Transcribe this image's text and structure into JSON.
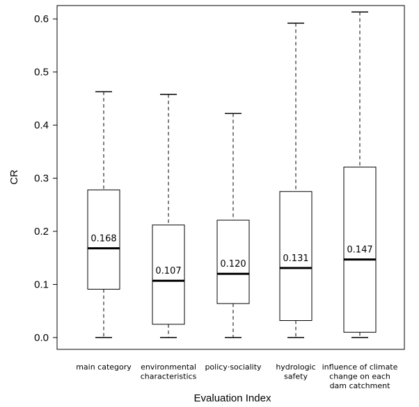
{
  "chart_data": {
    "type": "box",
    "title": "",
    "xlabel": "Evaluation Index",
    "ylabel": "CR",
    "ylim": [
      -0.03,
      0.63
    ],
    "yticks": [
      0.0,
      0.1,
      0.2,
      0.3,
      0.4,
      0.5,
      0.6
    ],
    "ytick_labels": [
      "0.0",
      "0.1",
      "0.2",
      "0.3",
      "0.4",
      "0.5",
      "0.6"
    ],
    "grid": false,
    "boxes": [
      {
        "label_lines": [
          "main category"
        ],
        "min": 0.0,
        "q1": 0.091,
        "median": 0.168,
        "q3": 0.278,
        "max": 0.463,
        "median_label": "0.168"
      },
      {
        "label_lines": [
          "environmental",
          "characteristics"
        ],
        "min": 0.0,
        "q1": 0.025,
        "median": 0.107,
        "q3": 0.212,
        "max": 0.458,
        "median_label": "0.107"
      },
      {
        "label_lines": [
          "policy·sociality"
        ],
        "min": 0.0,
        "q1": 0.064,
        "median": 0.12,
        "q3": 0.221,
        "max": 0.422,
        "median_label": "0.120"
      },
      {
        "label_lines": [
          "hydrologic",
          "safety"
        ],
        "min": 0.0,
        "q1": 0.032,
        "median": 0.131,
        "q3": 0.275,
        "max": 0.592,
        "median_label": "0.131"
      },
      {
        "label_lines": [
          "influence of climate",
          "change on each",
          "dam catchment"
        ],
        "min": 0.0,
        "q1": 0.01,
        "median": 0.147,
        "q3": 0.321,
        "max": 0.613,
        "median_label": "0.147"
      }
    ]
  }
}
